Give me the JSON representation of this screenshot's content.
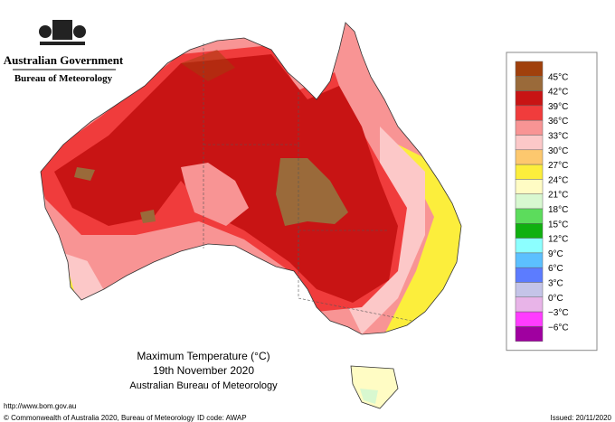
{
  "header": {
    "government": "Australian Government",
    "agency": "Bureau of Meteorology"
  },
  "map": {
    "title": "Maximum Temperature (°C)",
    "date": "19th November 2020",
    "source": "Australian Bureau of Meteorology"
  },
  "legend": {
    "colors": [
      "#a0400c",
      "#9a6a3a",
      "#c81414",
      "#f03c3c",
      "#f89494",
      "#fcc8c8",
      "#fdc86e",
      "#fcee3c",
      "#fffcc4",
      "#d8f8d0",
      "#5cdc5c",
      "#10b010",
      "#8cffff",
      "#5cc0ff",
      "#5c7cff",
      "#c4c4e8",
      "#e8b4e8",
      "#ff3cff",
      "#a000a0"
    ],
    "labels": [
      "45°C",
      "42°C",
      "39°C",
      "36°C",
      "33°C",
      "30°C",
      "27°C",
      "24°C",
      "21°C",
      "18°C",
      "15°C",
      "12°C",
      "9°C",
      "6°C",
      "3°C",
      "0°C",
      "−3°C",
      "−6°C"
    ]
  },
  "footer": {
    "url": "http://www.bom.gov.au",
    "copyright": "© Commonwealth of Australia 2020, Bureau of Meteorology",
    "id_code": "ID code: AWAP",
    "issued": "Issued: 20/11/2020"
  }
}
